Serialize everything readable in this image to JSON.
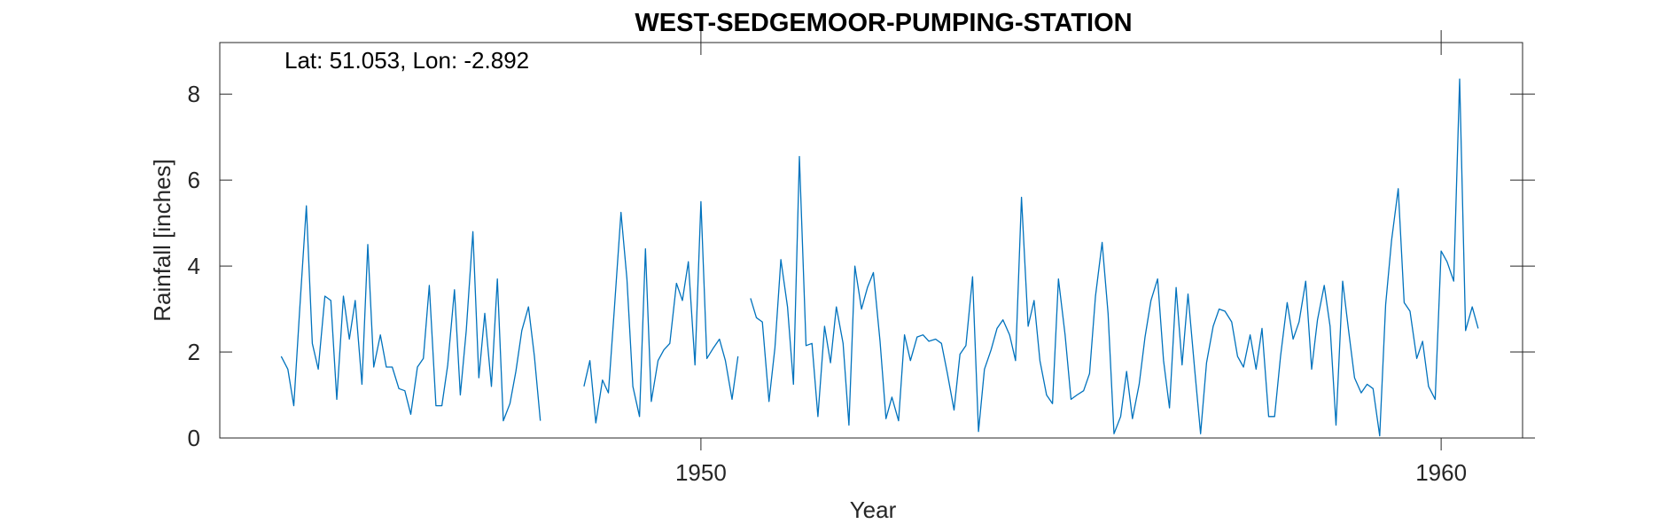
{
  "chart_data": {
    "type": "line",
    "title": "WEST-SEDGEMOOR-PUMPING-STATION",
    "annotation": "Lat: 51.053, Lon: -2.892",
    "xlabel": "Year",
    "ylabel": "Rainfall [inches]",
    "xlim": [
      1943.5,
      1961.1
    ],
    "ylim": [
      0,
      9.2
    ],
    "xticks": [
      1950,
      1960
    ],
    "yticks": [
      0,
      2,
      4,
      6,
      8
    ],
    "grid": false,
    "line_color": "#0072BD",
    "series": [
      {
        "segments": [
          {
            "x": [
              1944.33,
              1944.42,
              1944.5,
              1944.58,
              1944.67,
              1944.75,
              1944.83,
              1944.92,
              1945.0,
              1945.08,
              1945.17,
              1945.25,
              1945.33,
              1945.42,
              1945.5,
              1945.58,
              1945.67,
              1945.75,
              1945.83,
              1945.92,
              1946.0,
              1946.08,
              1946.17,
              1946.25,
              1946.33,
              1946.42,
              1946.5,
              1946.58,
              1946.67,
              1946.75,
              1946.83,
              1946.92,
              1947.0,
              1947.08,
              1947.17,
              1947.25,
              1947.33,
              1947.42,
              1947.5,
              1947.58,
              1947.67,
              1947.75,
              1947.83
            ],
            "y": [
              1.9,
              1.6,
              0.75,
              3.0,
              5.4,
              2.2,
              1.6,
              3.3,
              3.2,
              0.9,
              3.3,
              2.3,
              3.2,
              1.25,
              4.5,
              1.65,
              2.4,
              1.65,
              1.65,
              1.15,
              1.1,
              0.55,
              1.65,
              1.85,
              3.55,
              0.75,
              0.75,
              1.7,
              3.45,
              1.0,
              2.5,
              4.8,
              1.4,
              2.9,
              1.2,
              3.7,
              0.4,
              0.8,
              1.55,
              2.5,
              3.05,
              1.9,
              0.4
            ]
          },
          {
            "x": [
              1948.42,
              1948.5,
              1948.58,
              1948.67,
              1948.75,
              1948.83,
              1948.92,
              1949.0,
              1949.08,
              1949.17,
              1949.25,
              1949.33,
              1949.42,
              1949.5,
              1949.58,
              1949.67,
              1949.75,
              1949.83,
              1949.92,
              1950.0,
              1950.08,
              1950.17,
              1950.25,
              1950.33,
              1950.42,
              1950.5
            ],
            "y": [
              1.2,
              1.8,
              0.35,
              1.35,
              1.05,
              3.0,
              5.25,
              3.7,
              1.2,
              0.5,
              4.4,
              0.85,
              1.8,
              2.05,
              2.2,
              3.6,
              3.2,
              4.1,
              1.7,
              5.5,
              1.85,
              2.1,
              2.3,
              1.8,
              0.9,
              1.9
            ]
          },
          {
            "x": [
              1950.67,
              1950.75,
              1950.83,
              1950.92,
              1951.0,
              1951.08,
              1951.17,
              1951.25,
              1951.33,
              1951.42,
              1951.5,
              1951.58,
              1951.67,
              1951.75,
              1951.83,
              1951.92,
              1952.0,
              1952.08,
              1952.17,
              1952.25,
              1952.33,
              1952.42,
              1952.5,
              1952.58,
              1952.67,
              1952.75,
              1952.83,
              1952.92,
              1953.0,
              1953.08,
              1953.17,
              1953.25,
              1953.33,
              1953.42,
              1953.5,
              1953.58,
              1953.67,
              1953.75,
              1953.83,
              1953.92,
              1954.0,
              1954.08,
              1954.17,
              1954.25,
              1954.33,
              1954.42,
              1954.5,
              1954.58,
              1954.67,
              1954.75,
              1954.83,
              1954.92,
              1955.0,
              1955.08,
              1955.17,
              1955.25,
              1955.33,
              1955.42,
              1955.5,
              1955.58,
              1955.67,
              1955.75,
              1955.83,
              1955.92,
              1956.0,
              1956.08,
              1956.17,
              1956.25,
              1956.33,
              1956.42,
              1956.5,
              1956.58,
              1956.67,
              1956.75,
              1956.83,
              1956.92,
              1957.0,
              1957.08,
              1957.17,
              1957.25,
              1957.33,
              1957.42,
              1957.5,
              1957.58,
              1957.67,
              1957.75,
              1957.83,
              1957.92,
              1958.0,
              1958.08,
              1958.17,
              1958.25,
              1958.33,
              1958.42,
              1958.5,
              1958.58,
              1958.67,
              1958.75,
              1958.83,
              1958.92,
              1959.0,
              1959.08,
              1959.17,
              1959.25,
              1959.33,
              1959.42,
              1959.5,
              1959.58,
              1959.67,
              1959.75,
              1959.83,
              1959.92,
              1960.0,
              1960.08,
              1960.17,
              1960.25,
              1960.33,
              1960.42,
              1960.5
            ],
            "y": [
              3.25,
              2.8,
              2.7,
              0.85,
              2.1,
              4.15,
              3.05,
              1.25,
              6.55,
              2.15,
              2.2,
              0.5,
              2.6,
              1.75,
              3.05,
              2.2,
              0.3,
              4.0,
              3.0,
              3.5,
              3.85,
              2.25,
              0.45,
              0.95,
              0.4,
              2.4,
              1.8,
              2.35,
              2.4,
              2.25,
              2.3,
              2.2,
              1.5,
              0.65,
              1.95,
              2.15,
              3.75,
              0.15,
              1.6,
              2.05,
              2.55,
              2.75,
              2.4,
              1.8,
              5.6,
              2.6,
              3.2,
              1.8,
              1.0,
              0.8,
              3.7,
              2.4,
              0.9,
              1.0,
              1.1,
              1.5,
              3.3,
              4.55,
              2.9,
              0.1,
              0.5,
              1.55,
              0.45,
              1.25,
              2.35,
              3.2,
              3.7,
              1.8,
              0.7,
              3.5,
              1.7,
              3.35,
              1.6,
              0.1,
              1.75,
              2.6,
              3.0,
              2.95,
              2.7,
              1.9,
              1.65,
              2.4,
              1.6,
              2.55,
              0.5,
              0.5,
              1.9,
              3.15,
              2.3,
              2.7,
              3.65,
              1.6,
              2.75,
              3.55,
              2.6,
              0.3,
              3.65,
              2.5,
              1.4,
              1.05,
              1.25,
              1.15,
              0.05,
              3.1,
              4.6,
              5.8,
              3.15,
              2.95,
              1.85,
              2.25,
              1.2,
              0.9,
              4.35,
              4.1,
              3.65,
              8.35,
              2.5,
              3.05,
              2.55
            ]
          }
        ]
      }
    ]
  }
}
